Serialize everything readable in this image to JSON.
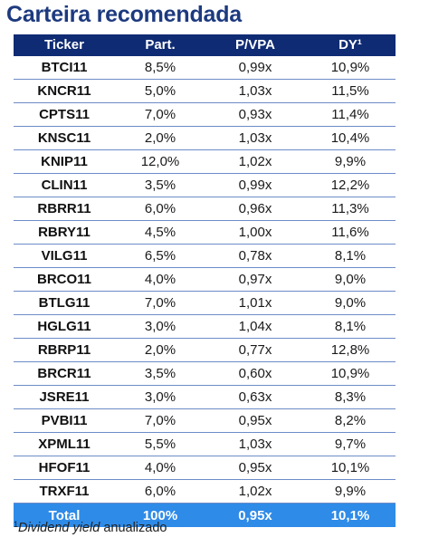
{
  "title": "Carteira recomendada",
  "headers": {
    "ticker": "Ticker",
    "part": "Part.",
    "pvpa": "P/VPA",
    "dy": "DY¹"
  },
  "rows": [
    {
      "ticker": "BTCI11",
      "part": "8,5%",
      "pvpa": "0,99x",
      "dy": "10,9%"
    },
    {
      "ticker": "KNCR11",
      "part": "5,0%",
      "pvpa": "1,03x",
      "dy": "11,5%"
    },
    {
      "ticker": "CPTS11",
      "part": "7,0%",
      "pvpa": "0,93x",
      "dy": "11,4%"
    },
    {
      "ticker": "KNSC11",
      "part": "2,0%",
      "pvpa": "1,03x",
      "dy": "10,4%"
    },
    {
      "ticker": "KNIP11",
      "part": "12,0%",
      "pvpa": "1,02x",
      "dy": "9,9%"
    },
    {
      "ticker": "CLIN11",
      "part": "3,5%",
      "pvpa": "0,99x",
      "dy": "12,2%"
    },
    {
      "ticker": "RBRR11",
      "part": "6,0%",
      "pvpa": "0,96x",
      "dy": "11,3%"
    },
    {
      "ticker": "RBRY11",
      "part": "4,5%",
      "pvpa": "1,00x",
      "dy": "11,6%"
    },
    {
      "ticker": "VILG11",
      "part": "6,5%",
      "pvpa": "0,78x",
      "dy": "8,1%"
    },
    {
      "ticker": "BRCO11",
      "part": "4,0%",
      "pvpa": "0,97x",
      "dy": "9,0%"
    },
    {
      "ticker": "BTLG11",
      "part": "7,0%",
      "pvpa": "1,01x",
      "dy": "9,0%"
    },
    {
      "ticker": "HGLG11",
      "part": "3,0%",
      "pvpa": "1,04x",
      "dy": "8,1%"
    },
    {
      "ticker": "RBRP11",
      "part": "2,0%",
      "pvpa": "0,77x",
      "dy": "12,8%"
    },
    {
      "ticker": "BRCR11",
      "part": "3,5%",
      "pvpa": "0,60x",
      "dy": "10,9%"
    },
    {
      "ticker": "JSRE11",
      "part": "3,0%",
      "pvpa": "0,63x",
      "dy": "8,3%"
    },
    {
      "ticker": "PVBI11",
      "part": "7,0%",
      "pvpa": "0,95x",
      "dy": "8,2%"
    },
    {
      "ticker": "XPML11",
      "part": "5,5%",
      "pvpa": "1,03x",
      "dy": "9,7%"
    },
    {
      "ticker": "HFOF11",
      "part": "4,0%",
      "pvpa": "0,95x",
      "dy": "10,1%"
    },
    {
      "ticker": "TRXF11",
      "part": "6,0%",
      "pvpa": "1,02x",
      "dy": "9,9%"
    }
  ],
  "total": {
    "label": "Total",
    "part": "100%",
    "pvpa": "0,95x",
    "dy": "10,1%"
  },
  "footnote": {
    "marker": "1",
    "italic": "Dividend yield",
    "rest": " anualizado"
  },
  "colors": {
    "title": "#1d3a7f",
    "header_bg": "#0f2b73",
    "total_bg": "#2e8be8",
    "row_rule": "#6d8cc8"
  }
}
